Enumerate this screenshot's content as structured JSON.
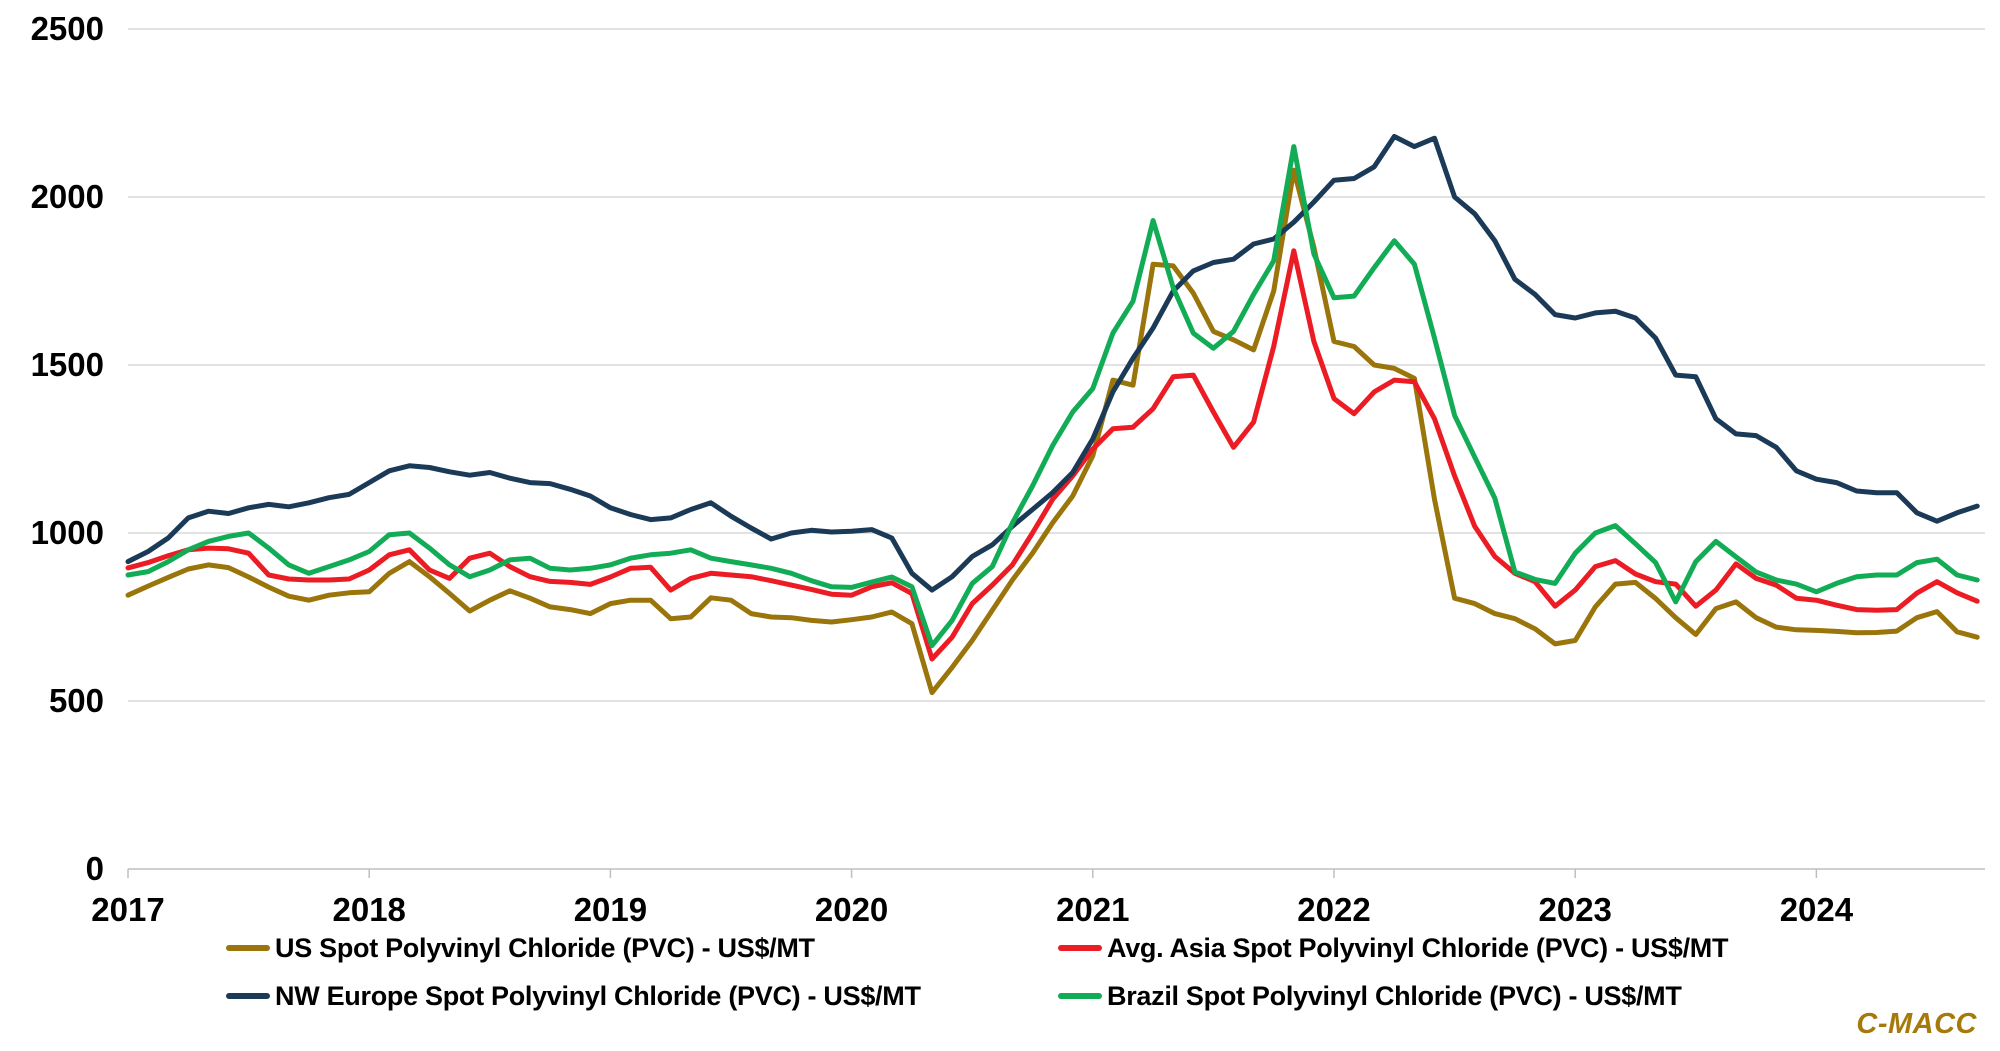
{
  "chart_data": {
    "type": "line",
    "x_ticks": [
      "2017",
      "2018",
      "2019",
      "2020",
      "2021",
      "2022",
      "2023",
      "2024"
    ],
    "x_start_year": 2017,
    "x_end": "2024-09",
    "points_per_year": 12,
    "y_ticks": [
      0,
      500,
      1000,
      1500,
      2000,
      2500
    ],
    "ylim": [
      0,
      2500
    ],
    "grid": "horizontal",
    "legend_position": "bottom",
    "series": [
      {
        "name": "US Spot Polyvinyl Chloride (PVC) - US$/MT",
        "color": "#9A750B",
        "values": [
          815,
          842,
          868,
          893,
          905,
          897,
          869,
          839,
          812,
          800,
          815,
          822,
          825,
          880,
          915,
          870,
          820,
          768,
          800,
          828,
          806,
          780,
          772,
          760,
          790,
          800,
          800,
          745,
          750,
          807,
          800,
          760,
          750,
          748,
          740,
          735,
          742,
          750,
          765,
          730,
          525,
          600,
          680,
          770,
          860,
          940,
          1030,
          1110,
          1230,
          1455,
          1440,
          1800,
          1795,
          1714,
          1600,
          1575,
          1545,
          1720,
          2080,
          1850,
          1570,
          1555,
          1500,
          1490,
          1460,
          1100,
          806,
          790,
          760,
          745,
          715,
          670,
          680,
          780,
          848,
          853,
          805,
          748,
          698,
          775,
          795,
          748,
          720,
          712,
          710,
          707,
          703,
          704,
          708,
          748,
          766,
          706,
          690
        ]
      },
      {
        "name": "Avg. Asia Spot Polyvinyl Chloride (PVC) - US$/MT",
        "color": "#EB1C24",
        "values": [
          896,
          912,
          932,
          950,
          955,
          953,
          940,
          875,
          863,
          860,
          860,
          863,
          890,
          935,
          950,
          890,
          865,
          925,
          940,
          900,
          870,
          856,
          853,
          847,
          869,
          895,
          898,
          830,
          865,
          880,
          875,
          870,
          858,
          845,
          832,
          818,
          815,
          840,
          852,
          820,
          625,
          690,
          790,
          845,
          905,
          1000,
          1100,
          1170,
          1250,
          1310,
          1315,
          1370,
          1465,
          1470,
          1360,
          1255,
          1330,
          1555,
          1840,
          1570,
          1400,
          1355,
          1420,
          1455,
          1450,
          1340,
          1170,
          1020,
          930,
          880,
          855,
          782,
          830,
          900,
          918,
          878,
          855,
          848,
          782,
          830,
          908,
          865,
          845,
          806,
          800,
          785,
          772,
          770,
          772,
          821,
          855,
          822,
          797
        ]
      },
      {
        "name": "NW Europe Spot Polyvinyl Chloride (PVC) - US$/MT",
        "color": "#1B3A57",
        "values": [
          915,
          945,
          985,
          1045,
          1065,
          1058,
          1075,
          1085,
          1078,
          1090,
          1105,
          1115,
          1150,
          1185,
          1200,
          1195,
          1182,
          1172,
          1180,
          1163,
          1150,
          1147,
          1130,
          1110,
          1075,
          1055,
          1040,
          1045,
          1070,
          1090,
          1050,
          1015,
          982,
          1000,
          1008,
          1003,
          1005,
          1010,
          985,
          880,
          830,
          870,
          930,
          965,
          1020,
          1070,
          1120,
          1180,
          1280,
          1420,
          1520,
          1610,
          1720,
          1780,
          1805,
          1815,
          1860,
          1875,
          1925,
          1985,
          2050,
          2055,
          2090,
          2180,
          2150,
          2175,
          2000,
          1950,
          1870,
          1755,
          1710,
          1650,
          1640,
          1655,
          1660,
          1640,
          1580,
          1470,
          1465,
          1340,
          1295,
          1290,
          1255,
          1185,
          1160,
          1150,
          1125,
          1120,
          1120,
          1060,
          1035,
          1060,
          1080
        ]
      },
      {
        "name": "Brazil Spot Polyvinyl Chloride (PVC) - US$/MT",
        "color": "#12AC56",
        "values": [
          875,
          885,
          915,
          950,
          975,
          990,
          1000,
          955,
          905,
          880,
          900,
          920,
          945,
          995,
          1000,
          955,
          905,
          870,
          890,
          920,
          925,
          895,
          890,
          895,
          905,
          925,
          935,
          940,
          950,
          925,
          915,
          905,
          895,
          880,
          858,
          840,
          838,
          854,
          869,
          840,
          665,
          740,
          850,
          900,
          1030,
          1140,
          1260,
          1360,
          1430,
          1595,
          1690,
          1930,
          1730,
          1595,
          1550,
          1600,
          1710,
          1810,
          2150,
          1830,
          1700,
          1705,
          1790,
          1870,
          1800,
          1580,
          1350,
          1226,
          1104,
          884,
          862,
          850,
          940,
          1000,
          1022,
          968,
          912,
          795,
          915,
          975,
          929,
          884,
          860,
          848,
          825,
          850,
          870,
          875,
          875,
          912,
          922,
          875,
          860
        ]
      }
    ]
  },
  "branding": {
    "label": "C-MACC",
    "color": "#A5790A"
  }
}
